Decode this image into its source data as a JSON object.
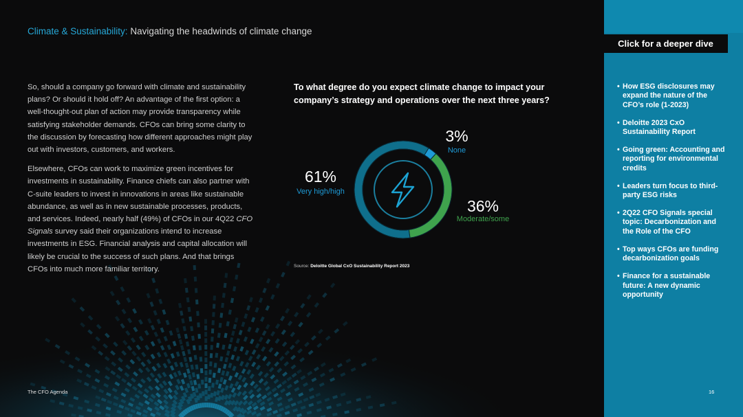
{
  "header": {
    "accent": "Climate & Sustainability:",
    "title": " Navigating the headwinds of climate change"
  },
  "body": {
    "p1": "So, should a company go forward with climate and sustainability plans? Or should it hold off? An advantage of the first option: a well-thought-out plan of action may provide transparency while satisfying stakeholder demands. CFOs can bring some clarity to the discussion by forecasting how different approaches might play out with investors, customers, and workers.",
    "p2_a": "Elsewhere, CFOs can work to maximize green incentives for investments in sustainability. Finance chiefs can also partner with C-suite leaders to invest in innovations in areas like sustainable abundance, as well as in new sustainable processes, products, and services. Indeed, nearly half (49%) of CFOs in our 4Q22 ",
    "p2_em": "CFO Signals",
    "p2_b": " survey said their organizations intend to increase investments in ESG. Financial analysis and capital allocation will likely be crucial to the success of such plans. And that brings CFOs into much more familiar territory."
  },
  "chart": {
    "question": "To what degree do you expect climate change to impact your company’s strategy and operations over the next three years?",
    "source_label": "Source: ",
    "source_name": "Deloitte Global CxO Sustainability Report 2023",
    "center_icon": "lightning-bolt-icon"
  },
  "chart_data": {
    "type": "pie",
    "categories": [
      "None",
      "Moderate/some",
      "Very high/high"
    ],
    "values": [
      3,
      36,
      61
    ],
    "labels": [
      "3%",
      "36%",
      "61%"
    ],
    "colors": [
      "#1e9bd7",
      "#3fa34d",
      "#0f6f8c"
    ]
  },
  "sidebar": {
    "cta": "Click for a deeper dive",
    "links": [
      "How ESG disclosures may expand the nature of the CFO’s role (1-2023)",
      "Deloitte 2023 CxO Sustainability Report",
      "Going green: Accounting and reporting for environmental credits",
      "Leaders turn focus to third-party ESG risks",
      "2Q22 CFO Signals special topic: Decarbonization and the Role of the CFO",
      "Top ways CFOs are funding decarbonization goals",
      "Finance for a sustainable future: A new dynamic opportunity"
    ],
    "bullet": "•"
  },
  "footer": {
    "left": "The CFO Agenda",
    "page": "16"
  }
}
